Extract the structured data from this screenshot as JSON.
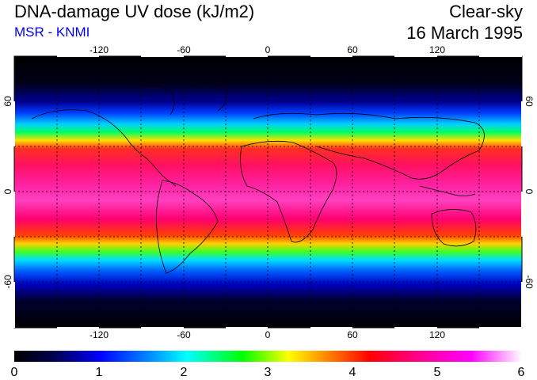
{
  "header": {
    "title": "DNA-damage UV dose (kJ/m2)",
    "source": "MSR - KNMI",
    "condition": "Clear-sky",
    "date": "16 March 1995"
  },
  "map": {
    "lon_ticks": [
      "-120",
      "-60",
      "0",
      "60",
      "120"
    ],
    "lat_ticks_left": [
      "60",
      "0",
      "-60"
    ],
    "lat_ticks_right": [
      "60",
      "0",
      "-60"
    ],
    "lon_range": [
      -180,
      180
    ],
    "lat_range": [
      -90,
      90
    ],
    "gridlines": "dotted every 30°",
    "colors": {
      "ocean_low": "#000010",
      "peak": "#ff00ff"
    }
  },
  "colorbar": {
    "labels": [
      "0",
      "1",
      "2",
      "3",
      "4",
      "5",
      "6"
    ],
    "range": [
      0,
      6
    ],
    "stops": [
      "#000000",
      "#000060",
      "#0000ff",
      "#00ffff",
      "#00ff00",
      "#ffff00",
      "#ff8000",
      "#ff0000",
      "#ff0090",
      "#ff00ff",
      "#ffffff"
    ]
  }
}
